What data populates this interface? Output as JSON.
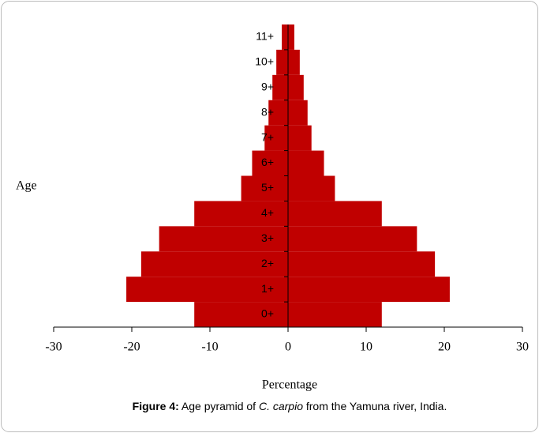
{
  "chart_data": {
    "type": "bar",
    "orientation": "horizontal",
    "categories": [
      "0+",
      "1+",
      "2+",
      "3+",
      "4+",
      "5+",
      "6+",
      "7+",
      "8+",
      "9+",
      "10+",
      "11+"
    ],
    "series": [
      {
        "color": "#c00000",
        "values": [
          -12,
          -20.7,
          -18.8,
          -16.5,
          -12,
          -6,
          -4.6,
          -3,
          -2.5,
          -2,
          -1.5,
          -0.8
        ]
      },
      {
        "color": "#c00000",
        "values": [
          12,
          20.7,
          18.8,
          16.5,
          12,
          6,
          4.6,
          3,
          2.5,
          2,
          1.5,
          0.8
        ]
      }
    ],
    "xlim": [
      -30,
      30
    ],
    "xticks": [
      -30,
      -20,
      -10,
      0,
      10,
      20,
      30
    ],
    "ylabel": "Age",
    "xlabel": "Percentage",
    "caption": [
      "Figure 4:",
      " Age pyramid of ",
      "C. carpio",
      " from the Yamuna river, India."
    ]
  }
}
